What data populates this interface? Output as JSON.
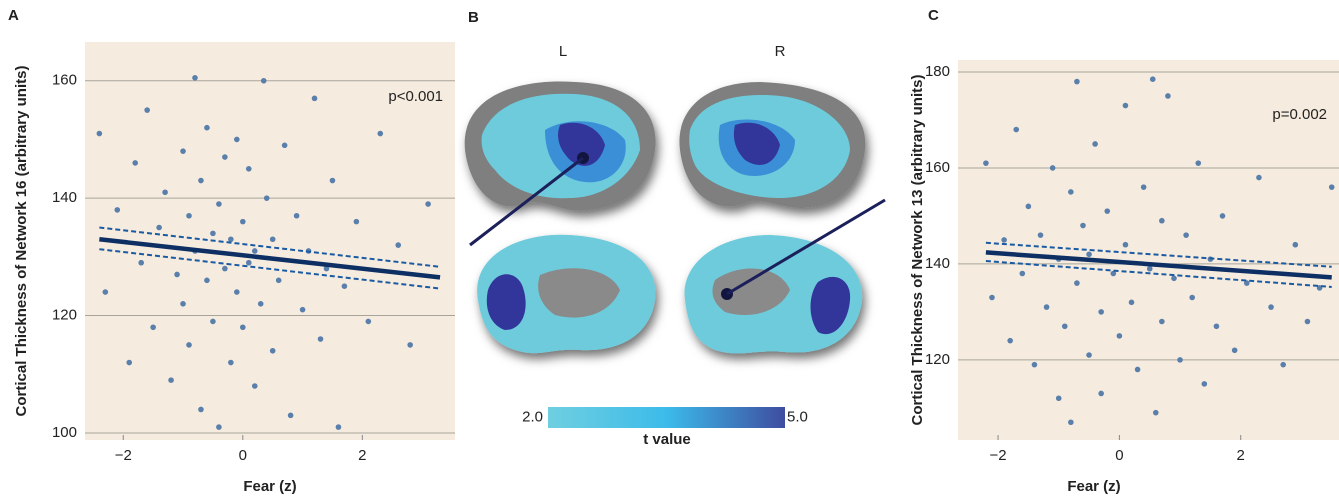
{
  "chart_data": [
    {
      "type": "scatter",
      "panel_label": "A",
      "xlabel": "Fear (z)",
      "ylabel": "Cortical Thickness of Network 16 (arbitrary units)",
      "annotation": "p<0.001",
      "xlim": [
        -2.64,
        3.55
      ],
      "ylim": [
        98.8,
        166.6
      ],
      "xticks": [
        {
          "value": -2,
          "label": "−2"
        },
        0,
        2
      ],
      "yticks": [
        100,
        120,
        140,
        160
      ],
      "grid": true,
      "background": "#f5ecdf",
      "color": "#5a7fab",
      "x": [
        -2.4,
        -2.3,
        -2.1,
        -1.9,
        -1.8,
        -1.7,
        -1.6,
        -1.5,
        -1.4,
        -1.3,
        -1.2,
        -1.1,
        -1.0,
        -1.0,
        -0.9,
        -0.9,
        -0.8,
        -0.8,
        -0.7,
        -0.7,
        -0.6,
        -0.6,
        -0.5,
        -0.5,
        -0.4,
        -0.4,
        -0.3,
        -0.3,
        -0.2,
        -0.2,
        -0.1,
        -0.1,
        0.0,
        0.0,
        0.1,
        0.1,
        0.2,
        0.2,
        0.35,
        0.3,
        0.4,
        0.5,
        0.5,
        0.6,
        0.7,
        0.8,
        0.9,
        1.0,
        1.1,
        1.2,
        1.3,
        1.4,
        1.5,
        1.6,
        1.7,
        1.9,
        2.1,
        2.3,
        2.6,
        2.8,
        3.1
      ],
      "values": [
        151,
        124,
        138,
        112,
        146,
        129,
        155,
        118,
        135,
        141,
        109,
        127,
        148,
        122,
        137,
        115,
        160.5,
        131,
        143,
        104,
        126,
        152,
        119,
        134,
        101,
        139,
        128,
        147,
        112,
        133,
        124,
        150,
        136,
        118,
        129,
        145,
        108,
        131,
        160,
        122,
        140,
        114,
        133,
        126,
        149,
        103,
        137,
        121,
        131,
        157,
        116,
        128,
        143,
        101,
        125,
        136,
        119,
        151,
        132,
        115,
        139
      ],
      "fit": {
        "x": [
          -2.4,
          3.3
        ],
        "values": [
          133,
          126.5
        ],
        "color": "#0d2f63"
      },
      "ci_upper": {
        "x": [
          -2.4,
          3.3
        ],
        "values": [
          135,
          128.3
        ],
        "color": "#1a5aa3"
      },
      "ci_lower": {
        "x": [
          -2.4,
          3.3
        ],
        "values": [
          131.3,
          124.6
        ],
        "color": "#1a5aa3"
      }
    },
    {
      "type": "scatter",
      "panel_label": "C",
      "xlabel": "Fear (z)",
      "ylabel": "Cortical Thickness of Network 13 (arbitrary units)",
      "annotation": "p=0.002",
      "xlim": [
        -2.66,
        3.62
      ],
      "ylim": [
        103.3,
        182.5
      ],
      "xticks": [
        {
          "value": -2,
          "label": "−2"
        },
        0,
        2
      ],
      "yticks": [
        120,
        140,
        160,
        180
      ],
      "grid": true,
      "background": "#f5ecdf",
      "color": "#5a7fab",
      "x": [
        -2.2,
        -2.1,
        -1.9,
        -1.8,
        -1.7,
        -1.6,
        -1.5,
        -1.4,
        -1.3,
        -1.2,
        -1.1,
        -1.0,
        -1.0,
        -0.9,
        -0.8,
        -0.8,
        -0.7,
        -0.7,
        -0.6,
        -0.5,
        -0.5,
        -0.4,
        -0.3,
        -0.3,
        -0.2,
        -0.1,
        0.0,
        0.1,
        0.1,
        0.2,
        0.3,
        0.4,
        0.5,
        0.55,
        0.6,
        0.7,
        0.7,
        0.8,
        0.9,
        1.0,
        1.1,
        1.2,
        1.3,
        1.4,
        1.5,
        1.6,
        1.7,
        1.9,
        2.1,
        2.3,
        2.5,
        2.7,
        2.9,
        3.1,
        3.3,
        3.5
      ],
      "values": [
        161,
        133,
        145,
        124,
        168,
        138,
        152,
        119,
        146,
        131,
        160,
        112,
        141,
        127,
        155,
        107,
        178,
        136,
        148,
        121,
        142,
        165,
        130,
        113,
        151,
        138,
        125,
        173,
        144,
        132,
        118,
        156,
        139,
        178.5,
        109,
        149,
        128,
        175,
        137,
        120,
        146,
        133,
        161,
        115,
        141,
        127,
        150,
        122,
        136,
        158,
        131,
        119,
        144,
        128,
        135,
        156
      ],
      "fit": {
        "x": [
          -2.2,
          3.5
        ],
        "values": [
          142.4,
          137.2
        ],
        "color": "#0d2f63"
      },
      "ci_upper": {
        "x": [
          -2.2,
          3.5
        ],
        "values": [
          144.4,
          139.4
        ],
        "color": "#1a5aa3"
      },
      "ci_lower": {
        "x": [
          -2.2,
          3.5
        ],
        "values": [
          140.6,
          135.2
        ],
        "color": "#1a5aa3"
      }
    }
  ],
  "panel_b": {
    "panel_label": "B",
    "hemispheres": [
      "L",
      "R"
    ],
    "colorbar": {
      "label": "t value",
      "ticks": [
        {
          "value": 2,
          "label": "2.0"
        },
        {
          "value": 5,
          "label": "5.0"
        }
      ],
      "colors": [
        "#6fcfe0",
        "#3cbbea",
        "#3e4d9f"
      ]
    }
  }
}
